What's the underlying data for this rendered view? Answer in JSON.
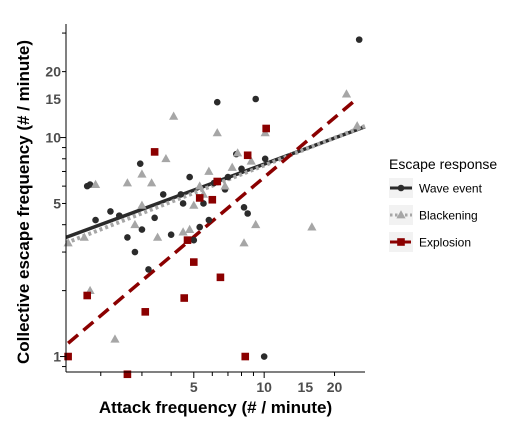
{
  "chart_data": {
    "type": "scatter",
    "title": "",
    "xlabel": "Attack frequency (# / minute)",
    "ylabel": "Collective escape frequency (# / minute)",
    "x_scale": "log",
    "y_scale": "log",
    "xlim": [
      1.42,
      27
    ],
    "ylim": [
      0.85,
      33
    ],
    "x_ticks": [
      5,
      10,
      15,
      20
    ],
    "y_ticks": [
      1,
      5,
      10,
      15,
      20
    ],
    "grid": false,
    "legend": {
      "title": "Escape response",
      "position": "right"
    },
    "colors": {
      "wave": "#2b2b2b",
      "blackening": "#a6a6a6",
      "explosion": "#8b0000"
    },
    "series": [
      {
        "name": "Wave event",
        "marker": "circle",
        "color": "#2b2b2b",
        "line_style": "solid",
        "fit": [
          [
            1.42,
            3.5
          ],
          [
            27,
            11.2
          ]
        ],
        "points": [
          [
            1.75,
            6.0
          ],
          [
            1.8,
            6.1
          ],
          [
            1.9,
            4.2
          ],
          [
            2.2,
            4.6
          ],
          [
            2.4,
            4.4
          ],
          [
            2.6,
            3.5
          ],
          [
            2.8,
            3.0
          ],
          [
            2.95,
            7.6
          ],
          [
            3.2,
            2.5
          ],
          [
            3.0,
            3.8
          ],
          [
            3.4,
            4.3
          ],
          [
            3.7,
            5.5
          ],
          [
            4.0,
            3.6
          ],
          [
            4.4,
            5.5
          ],
          [
            4.5,
            5.0
          ],
          [
            4.8,
            6.6
          ],
          [
            5.0,
            3.4
          ],
          [
            5.3,
            3.9
          ],
          [
            5.5,
            5.0
          ],
          [
            5.8,
            4.2
          ],
          [
            6.1,
            6.2
          ],
          [
            6.3,
            14.5
          ],
          [
            6.8,
            5.8
          ],
          [
            7.0,
            6.6
          ],
          [
            7.6,
            8.4
          ],
          [
            8.0,
            7.2
          ],
          [
            8.2,
            4.8
          ],
          [
            8.5,
            4.5
          ],
          [
            9.2,
            15.0
          ],
          [
            10.0,
            1.0
          ],
          [
            10.1,
            8.0
          ],
          [
            25.5,
            28.0
          ]
        ]
      },
      {
        "name": "Blackening",
        "marker": "triangle",
        "color": "#a6a6a6",
        "line_style": "dotted",
        "fit": [
          [
            1.42,
            3.3
          ],
          [
            27,
            11.3
          ]
        ],
        "points": [
          [
            1.45,
            3.3
          ],
          [
            1.7,
            3.5
          ],
          [
            1.8,
            2.0
          ],
          [
            1.9,
            6.1
          ],
          [
            2.3,
            1.2
          ],
          [
            2.6,
            6.2
          ],
          [
            2.8,
            4.0
          ],
          [
            3.0,
            4.9
          ],
          [
            3.0,
            6.8
          ],
          [
            3.3,
            6.2
          ],
          [
            3.5,
            3.5
          ],
          [
            3.8,
            8.0
          ],
          [
            4.1,
            12.5
          ],
          [
            4.5,
            3.7
          ],
          [
            4.8,
            3.8
          ],
          [
            5.0,
            4.9
          ],
          [
            5.3,
            6.0
          ],
          [
            5.5,
            5.5
          ],
          [
            5.8,
            7.0
          ],
          [
            6.3,
            10.5
          ],
          [
            6.8,
            6.0
          ],
          [
            7.3,
            7.3
          ],
          [
            7.7,
            8.5
          ],
          [
            8.2,
            3.3
          ],
          [
            8.8,
            7.8
          ],
          [
            9.2,
            4.0
          ],
          [
            10.1,
            10.5
          ],
          [
            16.0,
            3.9
          ],
          [
            22.5,
            15.8
          ],
          [
            25.0,
            11.3
          ]
        ]
      },
      {
        "name": "Explosion",
        "marker": "square",
        "color": "#8b0000",
        "line_style": "dashed",
        "fit": [
          [
            1.45,
            1.15
          ],
          [
            24.5,
            14.8
          ]
        ],
        "points": [
          [
            1.45,
            1.0
          ],
          [
            1.75,
            1.9
          ],
          [
            2.6,
            0.83
          ],
          [
            3.1,
            1.6
          ],
          [
            3.4,
            8.6
          ],
          [
            4.55,
            1.85
          ],
          [
            4.7,
            3.4
          ],
          [
            5.0,
            2.7
          ],
          [
            5.3,
            5.3
          ],
          [
            6.0,
            5.2
          ],
          [
            6.3,
            6.3
          ],
          [
            6.5,
            2.3
          ],
          [
            8.3,
            1.0
          ],
          [
            8.5,
            8.3
          ],
          [
            10.2,
            11.0
          ]
        ]
      }
    ]
  }
}
